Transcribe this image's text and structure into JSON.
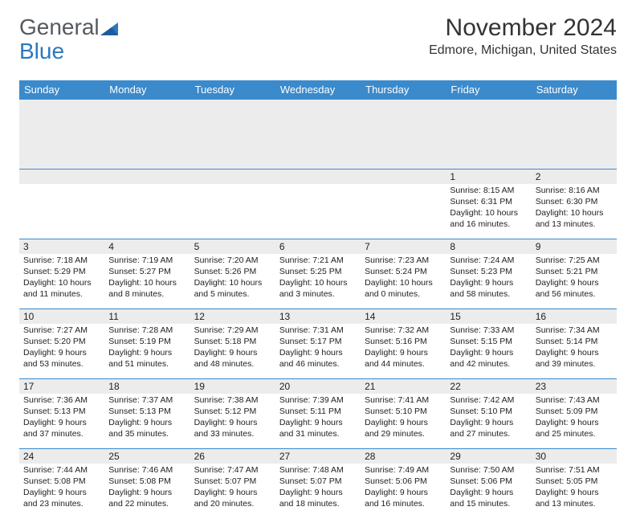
{
  "logo": {
    "text1": "General",
    "text2": "Blue"
  },
  "title": "November 2024",
  "location": "Edmore, Michigan, United States",
  "colors": {
    "header_bg": "#3a8acc",
    "header_text": "#ffffff",
    "daynum_bg": "#ececec",
    "cell_border": "#3a8acc",
    "text": "#222222",
    "logo_general": "#555a5e",
    "logo_blue": "#2d78bd",
    "page_bg": "#ffffff"
  },
  "typography": {
    "title_fontsize": 30,
    "location_fontsize": 16,
    "dayheader_fontsize": 13,
    "daynum_fontsize": 12,
    "cell_fontsize": 10.5,
    "font_family": "Arial"
  },
  "day_headers": [
    "Sunday",
    "Monday",
    "Tuesday",
    "Wednesday",
    "Thursday",
    "Friday",
    "Saturday"
  ],
  "weeks": [
    [
      null,
      null,
      null,
      null,
      null,
      {
        "n": "1",
        "sunrise": "Sunrise: 8:15 AM",
        "sunset": "Sunset: 6:31 PM",
        "daylight": "Daylight: 10 hours and 16 minutes."
      },
      {
        "n": "2",
        "sunrise": "Sunrise: 8:16 AM",
        "sunset": "Sunset: 6:30 PM",
        "daylight": "Daylight: 10 hours and 13 minutes."
      }
    ],
    [
      {
        "n": "3",
        "sunrise": "Sunrise: 7:18 AM",
        "sunset": "Sunset: 5:29 PM",
        "daylight": "Daylight: 10 hours and 11 minutes."
      },
      {
        "n": "4",
        "sunrise": "Sunrise: 7:19 AM",
        "sunset": "Sunset: 5:27 PM",
        "daylight": "Daylight: 10 hours and 8 minutes."
      },
      {
        "n": "5",
        "sunrise": "Sunrise: 7:20 AM",
        "sunset": "Sunset: 5:26 PM",
        "daylight": "Daylight: 10 hours and 5 minutes."
      },
      {
        "n": "6",
        "sunrise": "Sunrise: 7:21 AM",
        "sunset": "Sunset: 5:25 PM",
        "daylight": "Daylight: 10 hours and 3 minutes."
      },
      {
        "n": "7",
        "sunrise": "Sunrise: 7:23 AM",
        "sunset": "Sunset: 5:24 PM",
        "daylight": "Daylight: 10 hours and 0 minutes."
      },
      {
        "n": "8",
        "sunrise": "Sunrise: 7:24 AM",
        "sunset": "Sunset: 5:23 PM",
        "daylight": "Daylight: 9 hours and 58 minutes."
      },
      {
        "n": "9",
        "sunrise": "Sunrise: 7:25 AM",
        "sunset": "Sunset: 5:21 PM",
        "daylight": "Daylight: 9 hours and 56 minutes."
      }
    ],
    [
      {
        "n": "10",
        "sunrise": "Sunrise: 7:27 AM",
        "sunset": "Sunset: 5:20 PM",
        "daylight": "Daylight: 9 hours and 53 minutes."
      },
      {
        "n": "11",
        "sunrise": "Sunrise: 7:28 AM",
        "sunset": "Sunset: 5:19 PM",
        "daylight": "Daylight: 9 hours and 51 minutes."
      },
      {
        "n": "12",
        "sunrise": "Sunrise: 7:29 AM",
        "sunset": "Sunset: 5:18 PM",
        "daylight": "Daylight: 9 hours and 48 minutes."
      },
      {
        "n": "13",
        "sunrise": "Sunrise: 7:31 AM",
        "sunset": "Sunset: 5:17 PM",
        "daylight": "Daylight: 9 hours and 46 minutes."
      },
      {
        "n": "14",
        "sunrise": "Sunrise: 7:32 AM",
        "sunset": "Sunset: 5:16 PM",
        "daylight": "Daylight: 9 hours and 44 minutes."
      },
      {
        "n": "15",
        "sunrise": "Sunrise: 7:33 AM",
        "sunset": "Sunset: 5:15 PM",
        "daylight": "Daylight: 9 hours and 42 minutes."
      },
      {
        "n": "16",
        "sunrise": "Sunrise: 7:34 AM",
        "sunset": "Sunset: 5:14 PM",
        "daylight": "Daylight: 9 hours and 39 minutes."
      }
    ],
    [
      {
        "n": "17",
        "sunrise": "Sunrise: 7:36 AM",
        "sunset": "Sunset: 5:13 PM",
        "daylight": "Daylight: 9 hours and 37 minutes."
      },
      {
        "n": "18",
        "sunrise": "Sunrise: 7:37 AM",
        "sunset": "Sunset: 5:13 PM",
        "daylight": "Daylight: 9 hours and 35 minutes."
      },
      {
        "n": "19",
        "sunrise": "Sunrise: 7:38 AM",
        "sunset": "Sunset: 5:12 PM",
        "daylight": "Daylight: 9 hours and 33 minutes."
      },
      {
        "n": "20",
        "sunrise": "Sunrise: 7:39 AM",
        "sunset": "Sunset: 5:11 PM",
        "daylight": "Daylight: 9 hours and 31 minutes."
      },
      {
        "n": "21",
        "sunrise": "Sunrise: 7:41 AM",
        "sunset": "Sunset: 5:10 PM",
        "daylight": "Daylight: 9 hours and 29 minutes."
      },
      {
        "n": "22",
        "sunrise": "Sunrise: 7:42 AM",
        "sunset": "Sunset: 5:10 PM",
        "daylight": "Daylight: 9 hours and 27 minutes."
      },
      {
        "n": "23",
        "sunrise": "Sunrise: 7:43 AM",
        "sunset": "Sunset: 5:09 PM",
        "daylight": "Daylight: 9 hours and 25 minutes."
      }
    ],
    [
      {
        "n": "24",
        "sunrise": "Sunrise: 7:44 AM",
        "sunset": "Sunset: 5:08 PM",
        "daylight": "Daylight: 9 hours and 23 minutes."
      },
      {
        "n": "25",
        "sunrise": "Sunrise: 7:46 AM",
        "sunset": "Sunset: 5:08 PM",
        "daylight": "Daylight: 9 hours and 22 minutes."
      },
      {
        "n": "26",
        "sunrise": "Sunrise: 7:47 AM",
        "sunset": "Sunset: 5:07 PM",
        "daylight": "Daylight: 9 hours and 20 minutes."
      },
      {
        "n": "27",
        "sunrise": "Sunrise: 7:48 AM",
        "sunset": "Sunset: 5:07 PM",
        "daylight": "Daylight: 9 hours and 18 minutes."
      },
      {
        "n": "28",
        "sunrise": "Sunrise: 7:49 AM",
        "sunset": "Sunset: 5:06 PM",
        "daylight": "Daylight: 9 hours and 16 minutes."
      },
      {
        "n": "29",
        "sunrise": "Sunrise: 7:50 AM",
        "sunset": "Sunset: 5:06 PM",
        "daylight": "Daylight: 9 hours and 15 minutes."
      },
      {
        "n": "30",
        "sunrise": "Sunrise: 7:51 AM",
        "sunset": "Sunset: 5:05 PM",
        "daylight": "Daylight: 9 hours and 13 minutes."
      }
    ]
  ]
}
